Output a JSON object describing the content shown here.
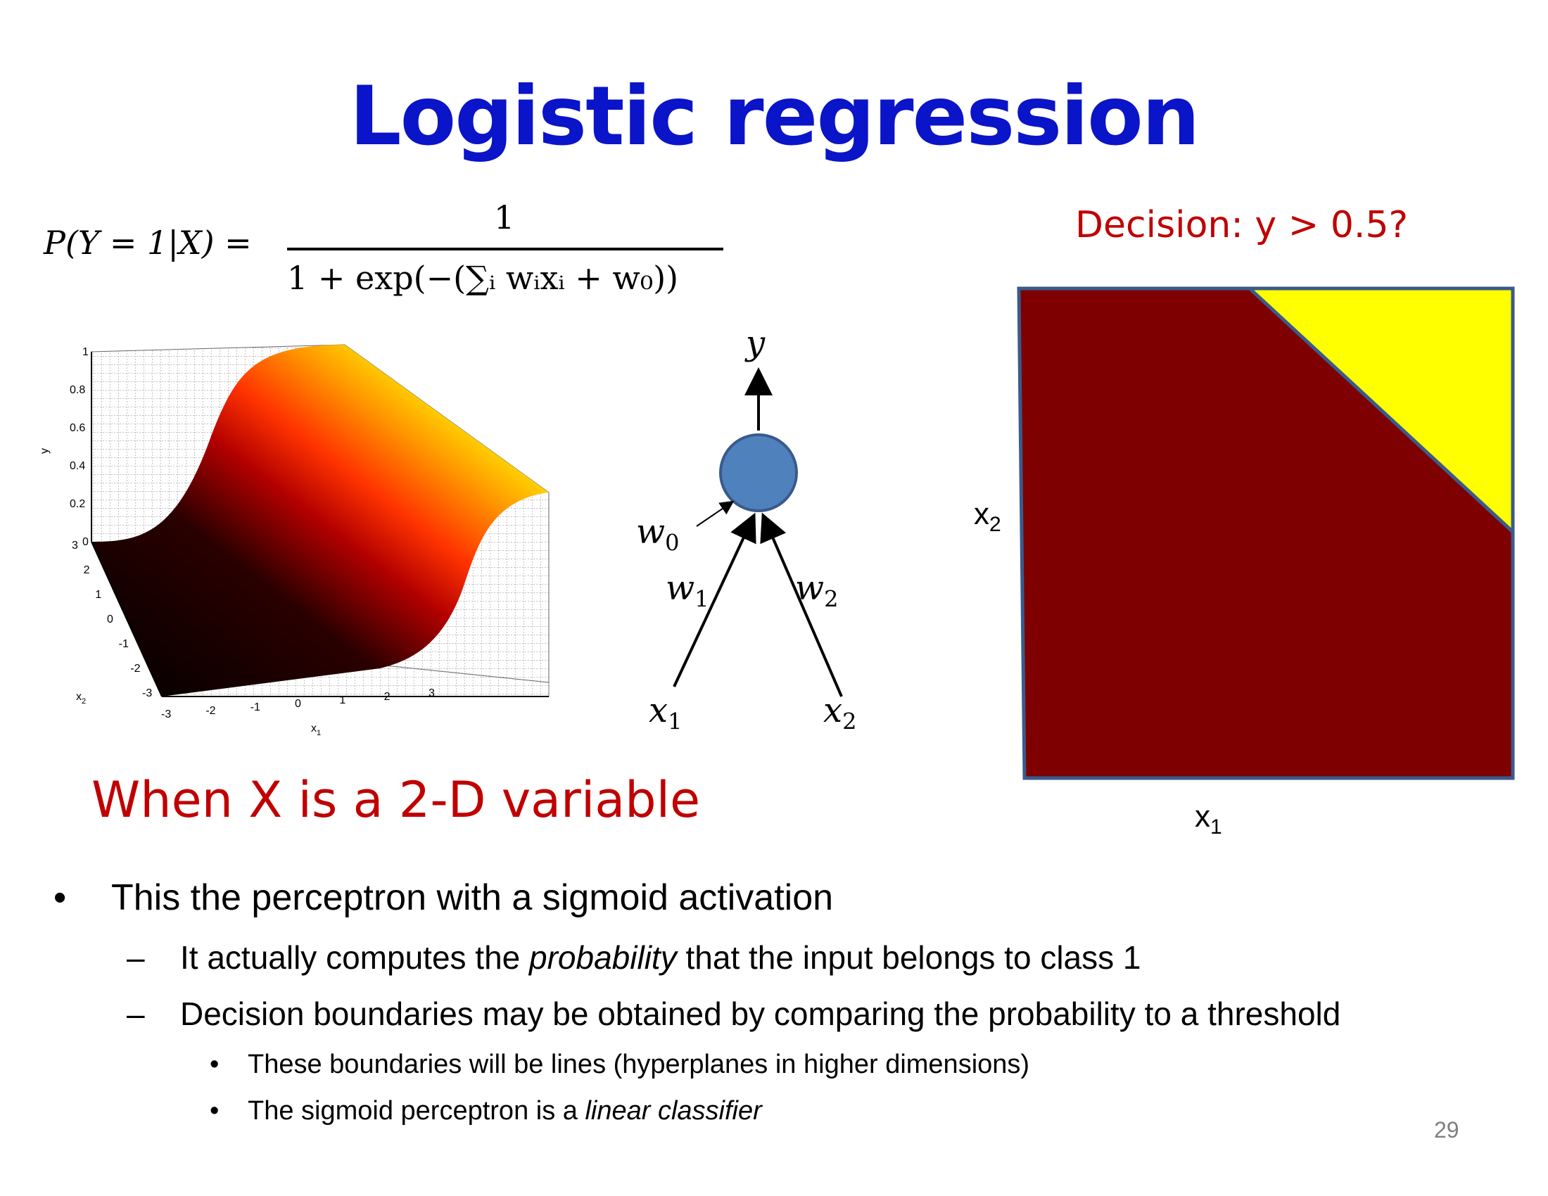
{
  "slide": {
    "title": "Logistic regression",
    "page_number": "29"
  },
  "formula": {
    "lhs": "P(Y = 1|X) =",
    "numerator": "1",
    "denominator": "1 + exp(−(∑ᵢ wᵢxᵢ + w₀))"
  },
  "surface_plot": {
    "z_ticks": [
      "0",
      "0.2",
      "0.4",
      "0.6",
      "0.8",
      "1"
    ],
    "z_label": "y",
    "x2_ticks": [
      "-3",
      "-2",
      "-1",
      "0",
      "1",
      "2",
      "3"
    ],
    "x1_ticks": [
      "-3",
      "-2",
      "-1",
      "0",
      "1",
      "2",
      "3"
    ],
    "x1_label": "x",
    "x1_label_sub": "1",
    "x2_label": "x",
    "x2_label_sub": "2",
    "colormap": [
      "#000000",
      "#8b0000",
      "#ff2a00",
      "#ffa500",
      "#ffff00",
      "#ffffff"
    ]
  },
  "network": {
    "y": "y",
    "w0": "w",
    "w0_sub": "0",
    "w1": "w",
    "w1_sub": "1",
    "w2": "w",
    "w2_sub": "2",
    "x1": "x",
    "x1_sub": "1",
    "x2": "x",
    "x2_sub": "2",
    "node_color": "#4f81bd"
  },
  "decision_region": {
    "heading": "Decision: y > 0.5?",
    "x1_label": "x",
    "x1_sub": "1",
    "x2_label": "x",
    "x2_sub": "2",
    "class0_color": "#7f0000",
    "class1_color": "#ffff00",
    "border_color": "#3a5a8c"
  },
  "caption": "When X is a 2-D variable",
  "bullets": {
    "b1": "This the perceptron with a sigmoid activation",
    "b1_marker": "•",
    "sub_marker": "–",
    "s1_before": "It actually computes the ",
    "s1_em": "probability",
    "s1_after": " that the input belongs to class 1",
    "s2": "Decision boundaries may be obtained by comparing the probability to a threshold",
    "subsub_marker": "•",
    "ss1": "These boundaries will be lines (hyperplanes in higher dimensions)",
    "ss2_before": "The sigmoid perceptron is a ",
    "ss2_em": "linear classifier"
  }
}
